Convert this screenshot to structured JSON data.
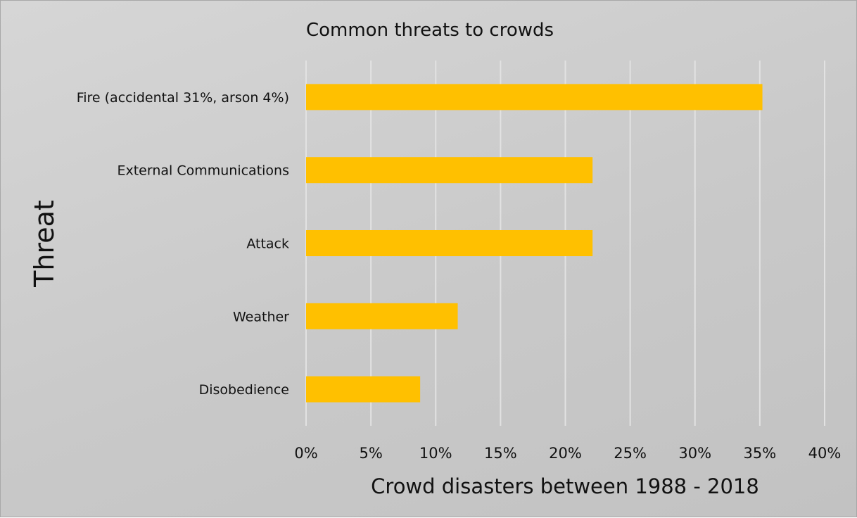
{
  "chart_data": {
    "type": "bar",
    "orientation": "horizontal",
    "title": "Common threats to crowds",
    "xlabel": "Crowd disasters between 1988 - 2018",
    "ylabel": "Threat",
    "categories": [
      "Fire (accidental 31%, arson 4%)",
      "External Communications",
      "Attack",
      "Weather",
      "Disobedience"
    ],
    "values": [
      35.2,
      22.1,
      22.1,
      11.7,
      8.8
    ],
    "value_unit": "%",
    "xlim": [
      0,
      40
    ],
    "xticks": [
      "0%",
      "5%",
      "10%",
      "15%",
      "20%",
      "25%",
      "30%",
      "35%",
      "40%"
    ],
    "grid": "vertical",
    "legend": "none",
    "colors": {
      "bar": "#FFC000",
      "gridline": "#e2e2e2"
    }
  }
}
